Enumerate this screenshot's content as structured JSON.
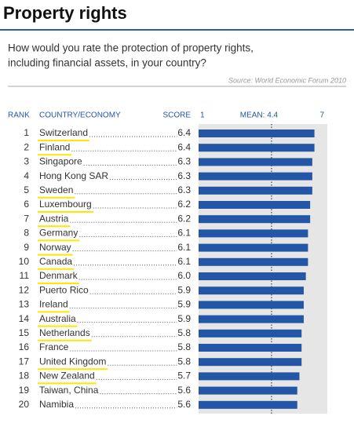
{
  "chart_data": {
    "type": "bar",
    "orientation": "horizontal",
    "title": "Property rights",
    "question_lines": [
      "How would you rate the protection of property rights,",
      "including financial assets, in your country?"
    ],
    "source": "Source: World Economic Forum 2010",
    "rank_header": "RANK",
    "category_header": "COUNTRY/ECONOMY",
    "value_header": "SCORE",
    "ranks": [
      1,
      2,
      3,
      4,
      5,
      6,
      7,
      8,
      9,
      10,
      11,
      12,
      13,
      14,
      15,
      16,
      17,
      18,
      19,
      20
    ],
    "categories": [
      "Switzerland",
      "Finland",
      "Singapore",
      "Hong Kong SAR",
      "Sweden",
      "Luxembourg",
      "Austria",
      "Germany",
      "Norway",
      "Canada",
      "Denmark",
      "Puerto Rico",
      "Ireland",
      "Australia",
      "Netherlands",
      "France",
      "United Kingdom",
      "New Zealand",
      "Taiwan, China",
      "Namibia"
    ],
    "values": [
      6.4,
      6.4,
      6.3,
      6.3,
      6.3,
      6.2,
      6.2,
      6.1,
      6.1,
      6.1,
      6.0,
      5.9,
      5.9,
      5.9,
      5.8,
      5.8,
      5.8,
      5.7,
      5.6,
      5.6
    ],
    "value_labels": [
      "6.4",
      "6.4",
      "6.3",
      "6.3",
      "6.3",
      "6.2",
      "6.2",
      "6.1",
      "6.1",
      "6.1",
      "6.0",
      "5.9",
      "5.9",
      "5.9",
      "5.8",
      "5.8",
      "5.8",
      "5.7",
      "5.6",
      "5.6"
    ],
    "highlighted": [
      true,
      true,
      false,
      false,
      true,
      true,
      true,
      true,
      true,
      true,
      true,
      false,
      true,
      true,
      true,
      false,
      true,
      true,
      false,
      false
    ],
    "highlight_color": "#ffe600",
    "color": "#2356a6",
    "xlim": [
      1,
      7
    ],
    "xticks": [
      1,
      {
        "value": 4.4,
        "label": "MEAN: 4.4"
      },
      7
    ],
    "mean": 4.4
  }
}
